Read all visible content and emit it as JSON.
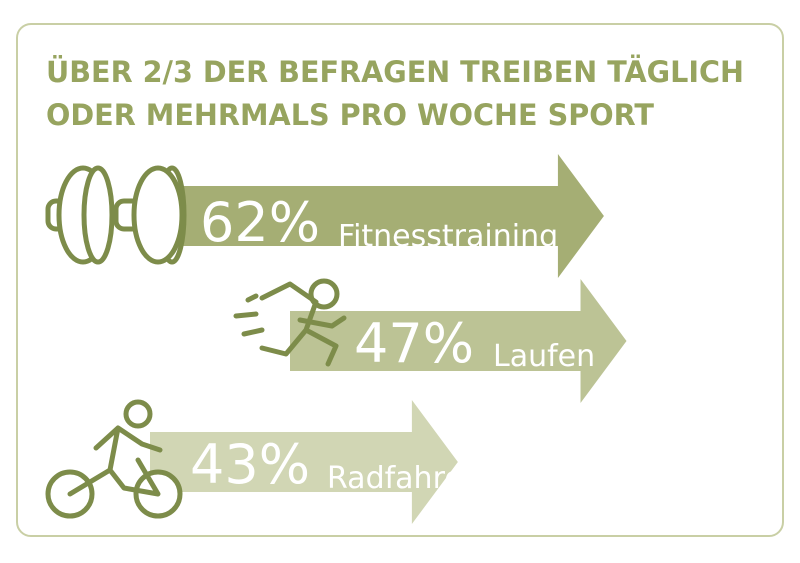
{
  "colors": {
    "frame": "#c9cfa5",
    "title": "#97a45f",
    "arrow_dark": "#a5ae74",
    "arrow_mid": "#bcc395",
    "arrow_light": "#d1d6b4",
    "icon_stroke": "#7d8c4a",
    "label_text": "#ffffff"
  },
  "title_lines": [
    "ÜBER 2/3 DER BEFRAGEN TREIBEN TÄGLICH",
    "ODER MEHRMALS PRO WOCHE SPORT"
  ],
  "chart_data": {
    "type": "bar",
    "orientation": "horizontal",
    "unit": "%",
    "title": "ÜBER 2/3 DER BEFRAGEN TREIBEN TÄGLICH ODER MEHRMALS PRO WOCHE SPORT",
    "categories": [
      "Fitnesstraining",
      "Laufen",
      "Radfahren"
    ],
    "values": [
      62,
      47,
      43
    ],
    "value_labels": [
      "62%",
      "47%",
      "43%"
    ],
    "icons": [
      "dumbbell-icon",
      "runner-icon",
      "cyclist-icon"
    ]
  }
}
